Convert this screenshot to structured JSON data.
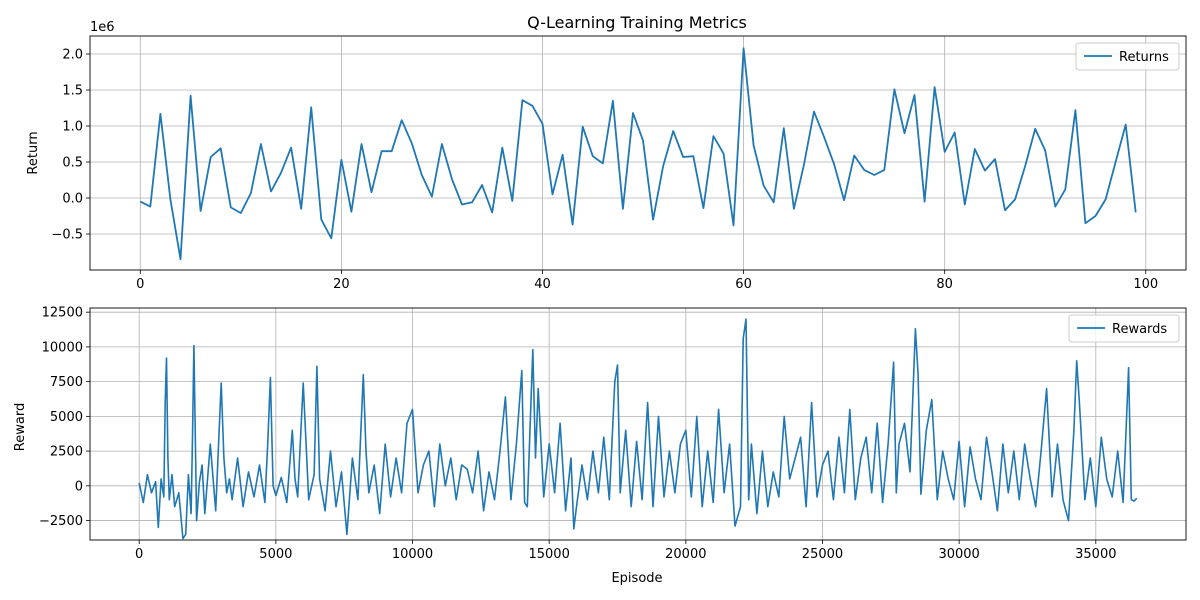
{
  "chart_data": [
    {
      "type": "line",
      "title": "Q-Learning Training Metrics",
      "xlabel": "",
      "ylabel": "Return",
      "offset_label": "1e6",
      "xlim": [
        -5,
        104
      ],
      "ylim": [
        -1.0,
        2.25
      ],
      "xticks": [
        0,
        20,
        40,
        60,
        80,
        100
      ],
      "yticks": [
        -0.5,
        0.0,
        0.5,
        1.0,
        1.5,
        2.0
      ],
      "xtick_labels": [
        "0",
        "20",
        "40",
        "60",
        "80",
        "100"
      ],
      "ytick_labels": [
        "−0.5",
        "0.0",
        "0.5",
        "1.0",
        "1.5",
        "2.0"
      ],
      "grid": true,
      "legend_position": "top-right",
      "color": "#1f77b4",
      "series": [
        {
          "name": "Returns",
          "x": [
            0,
            1,
            2,
            3,
            4,
            5,
            6,
            7,
            8,
            9,
            10,
            11,
            12,
            13,
            14,
            15,
            16,
            17,
            18,
            19,
            20,
            21,
            22,
            23,
            24,
            25,
            26,
            27,
            28,
            29,
            30,
            31,
            32,
            33,
            34,
            35,
            36,
            37,
            38,
            39,
            40,
            41,
            42,
            43,
            44,
            45,
            46,
            47,
            48,
            49,
            50,
            51,
            52,
            53,
            54,
            55,
            56,
            57,
            58,
            59,
            60,
            61,
            62,
            63,
            64,
            65,
            66,
            67,
            68,
            69,
            70,
            71,
            72,
            73,
            74,
            75,
            76,
            77,
            78,
            79,
            80,
            81,
            82,
            83,
            84,
            85,
            86,
            87,
            88,
            89,
            90,
            91,
            92,
            93,
            94,
            95,
            96,
            97,
            98,
            99
          ],
          "y": [
            -0.05,
            -0.12,
            1.17,
            -0.02,
            -0.85,
            1.42,
            -0.18,
            0.57,
            0.69,
            -0.13,
            -0.21,
            0.07,
            0.75,
            0.09,
            0.35,
            0.7,
            -0.15,
            1.26,
            -0.3,
            -0.56,
            0.53,
            -0.19,
            0.75,
            0.08,
            0.65,
            0.65,
            1.08,
            0.76,
            0.32,
            0.02,
            0.75,
            0.26,
            -0.09,
            -0.06,
            0.18,
            -0.2,
            0.7,
            -0.04,
            1.36,
            1.28,
            1.03,
            0.05,
            0.6,
            -0.37,
            0.99,
            0.58,
            0.48,
            1.35,
            -0.15,
            1.18,
            0.8,
            -0.3,
            0.44,
            0.93,
            0.57,
            0.58,
            -0.14,
            0.86,
            0.62,
            -0.38,
            2.08,
            0.73,
            0.17,
            -0.06,
            0.97,
            -0.15,
            0.46,
            1.2,
            0.85,
            0.47,
            -0.03,
            0.59,
            0.39,
            0.32,
            0.39,
            1.51,
            0.9,
            1.43,
            -0.05,
            1.54,
            0.64,
            0.91,
            -0.09,
            0.68,
            0.38,
            0.54,
            -0.17,
            -0.02,
            0.44,
            0.96,
            0.66,
            -0.12,
            0.12,
            1.22,
            -0.35,
            -0.25,
            -0.02,
            0.5,
            1.02,
            -0.2
          ]
        }
      ]
    },
    {
      "type": "line",
      "title": "",
      "xlabel": "Episode",
      "ylabel": "Reward",
      "xlim": [
        -1800,
        38300
      ],
      "ylim": [
        -3900,
        12800
      ],
      "xticks": [
        0,
        5000,
        10000,
        15000,
        20000,
        25000,
        30000,
        35000
      ],
      "yticks": [
        -2500,
        0,
        2500,
        5000,
        7500,
        10000,
        12500
      ],
      "xtick_labels": [
        "0",
        "5000",
        "10000",
        "15000",
        "20000",
        "25000",
        "30000",
        "35000"
      ],
      "ytick_labels": [
        "−2500",
        "0",
        "2500",
        "5000",
        "7500",
        "10000",
        "12500"
      ],
      "grid": true,
      "legend_position": "top-right",
      "color": "#1f77b4",
      "series": [
        {
          "name": "Rewards",
          "x": [
            0,
            150,
            300,
            450,
            600,
            700,
            800,
            900,
            950,
            1000,
            1050,
            1100,
            1200,
            1300,
            1450,
            1600,
            1700,
            1800,
            1900,
            1950,
            2000,
            2100,
            2200,
            2300,
            2400,
            2600,
            2800,
            3000,
            3100,
            3200,
            3300,
            3400,
            3600,
            3800,
            4000,
            4200,
            4400,
            4600,
            4700,
            4800,
            4900,
            5000,
            5200,
            5400,
            5600,
            5700,
            5800,
            6000,
            6200,
            6400,
            6500,
            6600,
            6800,
            7000,
            7200,
            7400,
            7600,
            7800,
            8000,
            8200,
            8300,
            8400,
            8600,
            8800,
            9000,
            9200,
            9400,
            9600,
            9800,
            10000,
            10200,
            10400,
            10600,
            10800,
            11000,
            11200,
            11400,
            11600,
            11800,
            12000,
            12200,
            12400,
            12600,
            12800,
            13000,
            13200,
            13400,
            13600,
            13800,
            14000,
            14100,
            14200,
            14400,
            14500,
            14600,
            14800,
            15000,
            15200,
            15400,
            15600,
            15800,
            15900,
            16000,
            16200,
            16400,
            16600,
            16800,
            17000,
            17200,
            17400,
            17500,
            17600,
            17800,
            18000,
            18200,
            18400,
            18600,
            18800,
            19000,
            19200,
            19400,
            19600,
            19800,
            20000,
            20200,
            20400,
            20600,
            20800,
            21000,
            21200,
            21400,
            21600,
            21800,
            22000,
            22100,
            22200,
            22300,
            22400,
            22600,
            22800,
            23000,
            23200,
            23400,
            23600,
            23800,
            24000,
            24200,
            24400,
            24600,
            24800,
            25000,
            25200,
            25400,
            25600,
            25800,
            26000,
            26200,
            26400,
            26600,
            26800,
            27000,
            27200,
            27400,
            27600,
            27700,
            27800,
            28000,
            28200,
            28400,
            28500,
            28600,
            28800,
            29000,
            29200,
            29400,
            29600,
            29800,
            30000,
            30200,
            30400,
            30600,
            30800,
            31000,
            31200,
            31400,
            31600,
            31800,
            32000,
            32200,
            32400,
            32600,
            32800,
            33000,
            33200,
            33400,
            33600,
            33800,
            34000,
            34200,
            34300,
            34400,
            34600,
            34800,
            35000,
            35200,
            35400,
            35600,
            35800,
            36000,
            36200,
            36300,
            36400,
            36500
          ],
          "y": [
            200,
            -1200,
            800,
            -500,
            300,
            -3000,
            500,
            -800,
            6000,
            9200,
            2000,
            -1000,
            800,
            -1500,
            -500,
            -3800,
            -3500,
            800,
            -2000,
            3500,
            10100,
            -2500,
            200,
            1500,
            -2000,
            3000,
            -1800,
            7400,
            2000,
            -500,
            500,
            -1000,
            2000,
            -1500,
            1000,
            -800,
            1500,
            -1200,
            3000,
            7800,
            0,
            -700,
            600,
            -1200,
            4000,
            500,
            -800,
            7400,
            -1000,
            800,
            8600,
            500,
            -1800,
            2500,
            -1500,
            1000,
            -3500,
            2000,
            -1000,
            8000,
            2500,
            -500,
            1500,
            -2000,
            3000,
            -800,
            2000,
            -500,
            4500,
            5500,
            -500,
            1500,
            2500,
            -1500,
            3000,
            0,
            2000,
            -1000,
            1500,
            1200,
            -500,
            2500,
            -1800,
            1000,
            -1000,
            2500,
            6400,
            -1000,
            3000,
            8300,
            -1200,
            -1500,
            9800,
            2000,
            7000,
            -800,
            3000,
            -500,
            4500,
            -1800,
            2000,
            -3100,
            -1500,
            1500,
            -1000,
            2500,
            -500,
            3500,
            -1000,
            7500,
            8700,
            -500,
            4000,
            -1500,
            3200,
            -1000,
            6000,
            -1500,
            5000,
            -800,
            2500,
            -500,
            3000,
            4000,
            -800,
            5000,
            -1500,
            2500,
            -1200,
            5500,
            -500,
            3000,
            -2900,
            -1500,
            10600,
            12000,
            -1000,
            3000,
            -2000,
            2500,
            -1500,
            1000,
            -800,
            5000,
            500,
            2000,
            3500,
            -1500,
            6000,
            -800,
            1500,
            2500,
            -1000,
            3500,
            -500,
            5500,
            -1000,
            2000,
            3500,
            -500,
            4500,
            -1200,
            3000,
            8900,
            -500,
            3000,
            4500,
            1000,
            11300,
            8000,
            -600,
            4000,
            6200,
            -1000,
            2500,
            500,
            -1000,
            3200,
            -1500,
            2800,
            500,
            -1000,
            3500,
            1000,
            -1800,
            3000,
            -500,
            2500,
            -1000,
            3000,
            500,
            -1500,
            2500,
            7000,
            -800,
            3000,
            -1000,
            -2500,
            4000,
            9000,
            6000,
            -1000,
            2000,
            -1500,
            3500,
            500,
            -800,
            2500,
            -1200,
            8500,
            -1000,
            -1100,
            -900
          ]
        }
      ]
    }
  ]
}
